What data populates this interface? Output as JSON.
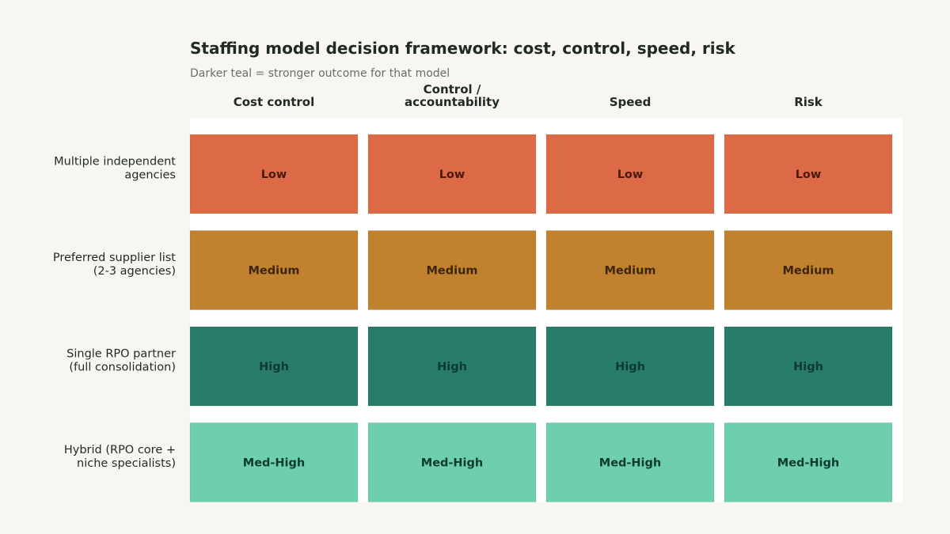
{
  "title": "Staffing model decision framework: cost, control, speed, risk",
  "subtitle": "Darker teal = stronger outcome for that model",
  "chart_data": {
    "type": "heatmap",
    "columns": [
      [
        "Cost control"
      ],
      [
        "Control /",
        "accountability"
      ],
      [
        "Speed"
      ],
      [
        "Risk"
      ]
    ],
    "rows": [
      [
        "Multiple independent",
        "agencies"
      ],
      [
        "Preferred supplier list",
        "(2-3 agencies)"
      ],
      [
        "Single RPO partner",
        "(full consolidation)"
      ],
      [
        "Hybrid (RPO core +",
        "niche specialists)"
      ]
    ],
    "values": [
      [
        "Low",
        "Low",
        "Low",
        "Low"
      ],
      [
        "Medium",
        "Medium",
        "Medium",
        "Medium"
      ],
      [
        "High",
        "High",
        "High",
        "High"
      ],
      [
        "Med-High",
        "Med-High",
        "Med-High",
        "Med-High"
      ]
    ],
    "colors": {
      "Low": "#dd6a47",
      "Medium": "#c0822f",
      "High": "#277c6a",
      "Med-High": "#6dcfad"
    },
    "text_colors": {
      "Low": "#4a1a0e",
      "Medium": "#3f2508",
      "High": "#0f3a31",
      "Med-High": "#0f3a31"
    },
    "panel_color": "#ffffff"
  }
}
